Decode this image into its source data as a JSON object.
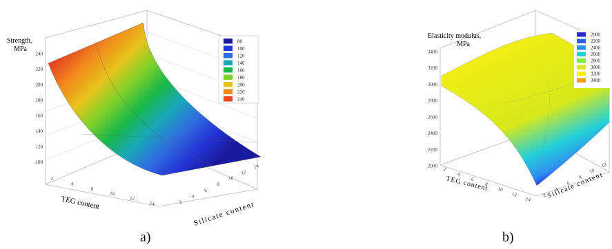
{
  "figure": {
    "captions": [
      "a)",
      "b)"
    ]
  },
  "chart_data": [
    {
      "type": "surface",
      "title": "",
      "zlabel_lines": [
        "Strength,",
        "MPa"
      ],
      "xlabel": "TEG content",
      "ylabel": "Silicate content",
      "x_ticks": [
        "2",
        "4",
        "6",
        "10",
        "12",
        "14"
      ],
      "y_ticks": [
        "2",
        "4",
        "6",
        "8",
        "10",
        "12",
        "14"
      ],
      "z_ticks": [
        "240",
        "220",
        "200",
        "180",
        "160",
        "140",
        "120",
        "100"
      ],
      "xlim": [
        2,
        14
      ],
      "ylim": [
        2,
        14
      ],
      "zlim": [
        80,
        240
      ],
      "surface_corners": {
        "teg_2_silicate_2": 225,
        "teg_2_silicate_14": 240,
        "teg_14_silicate_2": 90,
        "teg_14_silicate_14": 95
      },
      "legend": {
        "position": "top-right",
        "levels": [
          {
            "label": "80",
            "color": "#1a1a9e"
          },
          {
            "label": "100",
            "color": "#2536d6"
          },
          {
            "label": "120",
            "color": "#2f6fe0"
          },
          {
            "label": "140",
            "color": "#18a8b8"
          },
          {
            "label": "160",
            "color": "#19b84a"
          },
          {
            "label": "180",
            "color": "#7fd12b"
          },
          {
            "label": "200",
            "color": "#e8c21a"
          },
          {
            "label": "220",
            "color": "#f08a1c"
          },
          {
            "label": "240",
            "color": "#e8461e"
          }
        ]
      },
      "grid": true
    },
    {
      "type": "surface",
      "title": "",
      "zlabel_lines": [
        "Elasticity modulus,",
        "MPa"
      ],
      "xlabel": "TEG content",
      "ylabel": "Silicate content",
      "x_ticks": [
        "2",
        "4",
        "6",
        "8",
        "10",
        "12",
        "14"
      ],
      "y_ticks": [
        "2",
        "4",
        "6",
        "8",
        "10",
        "12"
      ],
      "z_ticks": [
        "3400",
        "3200",
        "3000",
        "2800",
        "2600",
        "2400",
        "2200",
        "2000"
      ],
      "xlim": [
        2,
        14
      ],
      "ylim": [
        2,
        14
      ],
      "zlim": [
        2000,
        3400
      ],
      "surface_corners": {
        "teg_2_silicate_2": 3050,
        "teg_2_silicate_14": 3450,
        "teg_14_silicate_2": 2050,
        "teg_14_silicate_14": 2700
      },
      "legend": {
        "position": "top-right",
        "levels": [
          {
            "label": "2000",
            "color": "#2a2ad0"
          },
          {
            "label": "2200",
            "color": "#2f5fe8"
          },
          {
            "label": "2400",
            "color": "#2f8ff0"
          },
          {
            "label": "2600",
            "color": "#22d0d8"
          },
          {
            "label": "2800",
            "color": "#7fe83a"
          },
          {
            "label": "3000",
            "color": "#d8e81a"
          },
          {
            "label": "3200",
            "color": "#f2ee14"
          },
          {
            "label": "3400",
            "color": "#f0a018"
          }
        ]
      },
      "grid": true
    }
  ]
}
